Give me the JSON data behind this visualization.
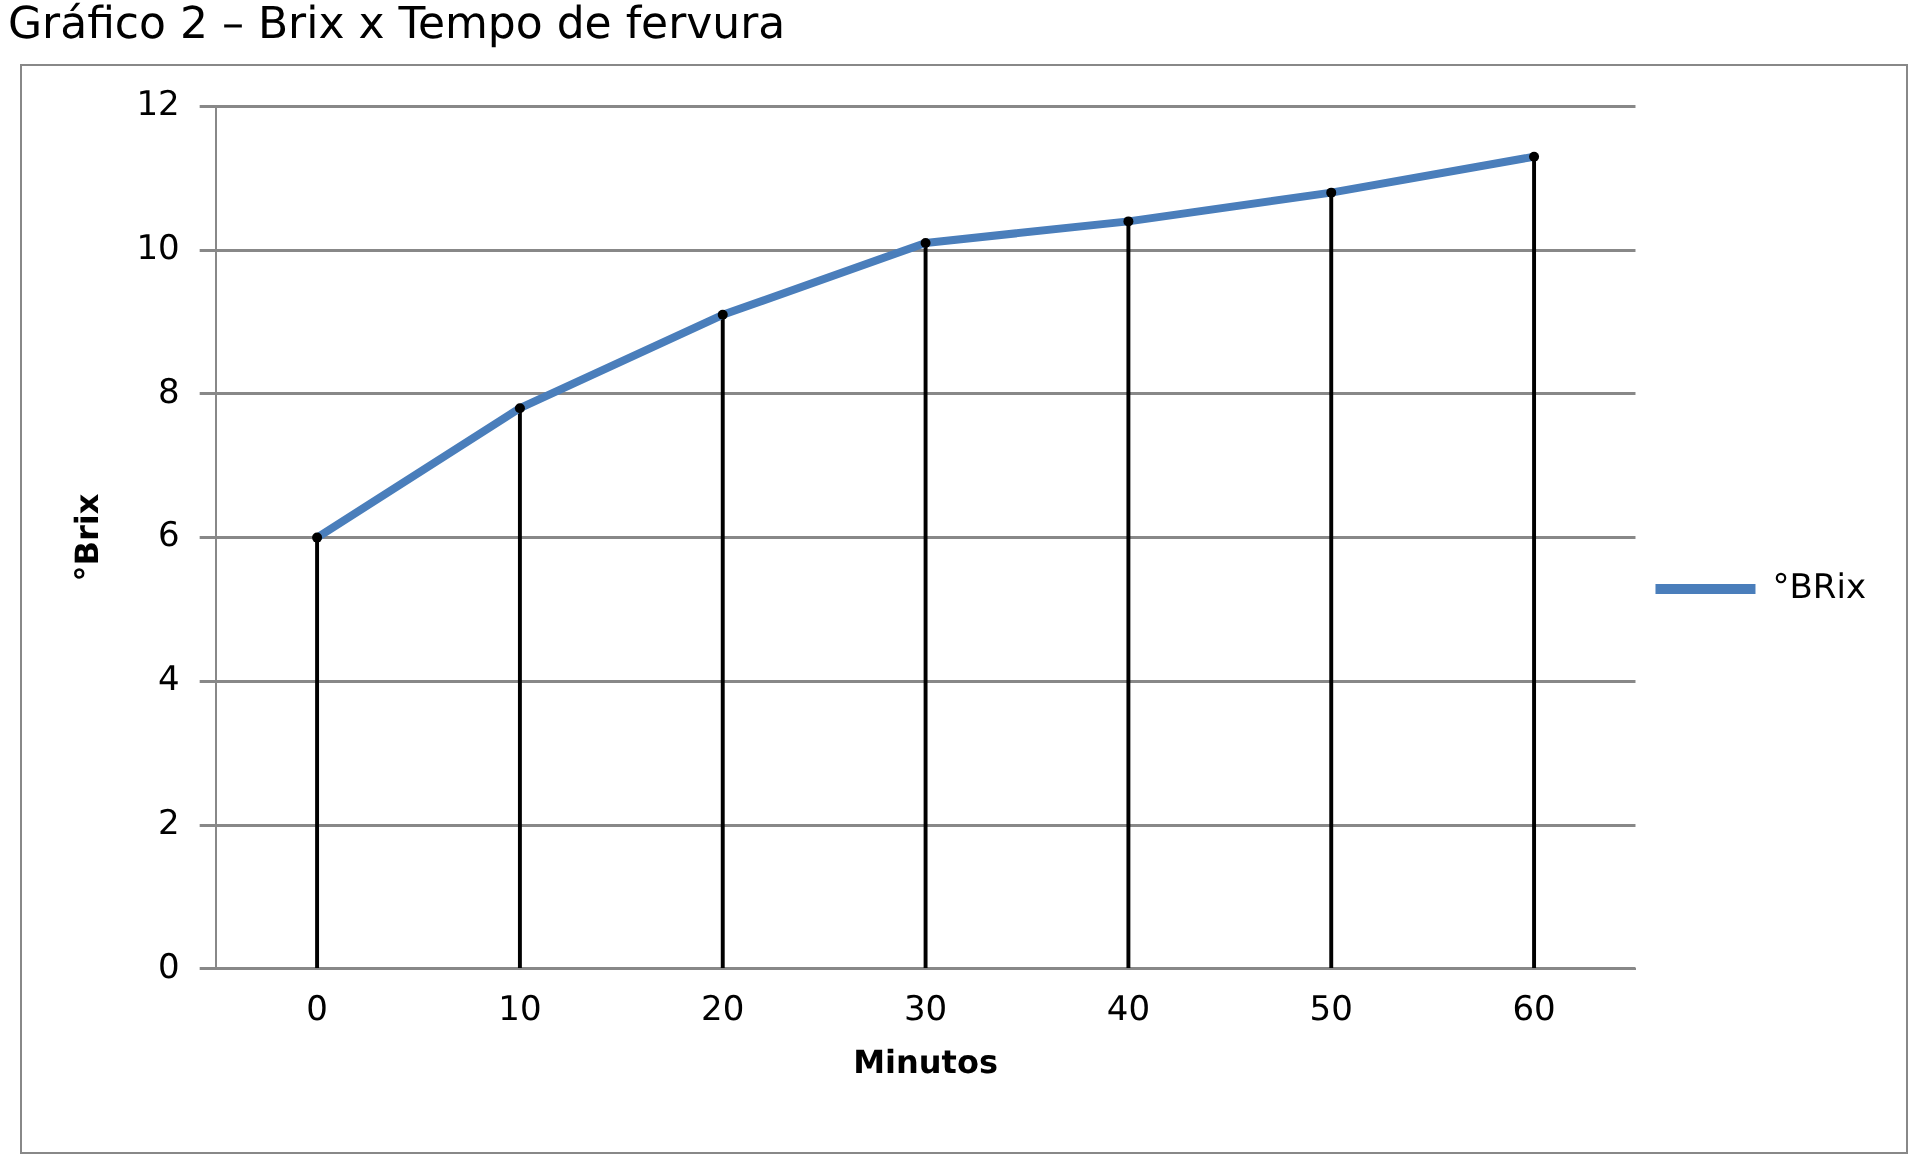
{
  "chart_data": {
    "type": "line",
    "title": "Gráfico 2 – Brix x Tempo de fervura",
    "xlabel": "Minutos",
    "ylabel": "°Brix",
    "categories": [
      "0",
      "10",
      "20",
      "30",
      "40",
      "50",
      "60"
    ],
    "series": [
      {
        "name": "°BRix",
        "color": "#4a7ebb",
        "values": [
          6,
          7.8,
          9.1,
          10.1,
          10.4,
          10.8,
          11.3
        ]
      },
      {
        "type": "lollipop",
        "color": "#000000",
        "values": [
          6,
          7.8,
          9.1,
          10.1,
          10.4,
          10.8,
          11.3
        ]
      }
    ],
    "ylim": [
      0,
      12
    ],
    "yticks": [
      0,
      2,
      4,
      6,
      8,
      10,
      12
    ],
    "grid": "y",
    "legend": "right"
  }
}
